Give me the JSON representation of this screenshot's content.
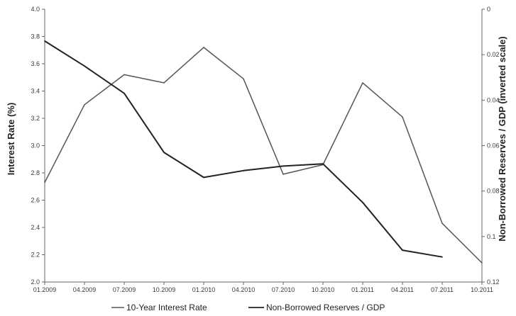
{
  "chart_data": {
    "type": "line",
    "title": "",
    "categories": [
      "01.2009",
      "04.2009",
      "07.2009",
      "10.2009",
      "01.2010",
      "04.2010",
      "07.2010",
      "10.2010",
      "01.2011",
      "04.2011",
      "07.2011",
      "10.2011"
    ],
    "series": [
      {
        "name": "10-Year Interest Rate",
        "axis": "left",
        "color": "#555555",
        "values": [
          2.73,
          3.3,
          3.52,
          3.46,
          3.72,
          3.49,
          2.79,
          2.86,
          3.46,
          3.21,
          2.43,
          2.14
        ]
      },
      {
        "name": "Non-Borrowed Reserves / GDP",
        "axis": "right",
        "color": "#222222",
        "values": [
          0.014,
          0.025,
          0.037,
          0.063,
          0.074,
          0.071,
          0.069,
          0.068,
          0.085,
          0.106,
          0.109,
          null
        ]
      }
    ],
    "ylabel": "Interest Rate (%)",
    "y2label": "Non-Borrowed Reserves / GDP (inverted scale)",
    "ylim": [
      2.0,
      4.0
    ],
    "y2lim": [
      0,
      0.12
    ],
    "y2_inverted": true,
    "yticks": [
      "2.0",
      "2.2",
      "2.4",
      "2.6",
      "2.8",
      "3.0",
      "3.2",
      "3.4",
      "3.6",
      "3.8",
      "4.0"
    ],
    "y2ticks": [
      "0",
      "0.02",
      "0.04",
      "0.06",
      "0.08",
      "0.1",
      "0.12"
    ],
    "grid": false,
    "legend_position": "bottom"
  }
}
